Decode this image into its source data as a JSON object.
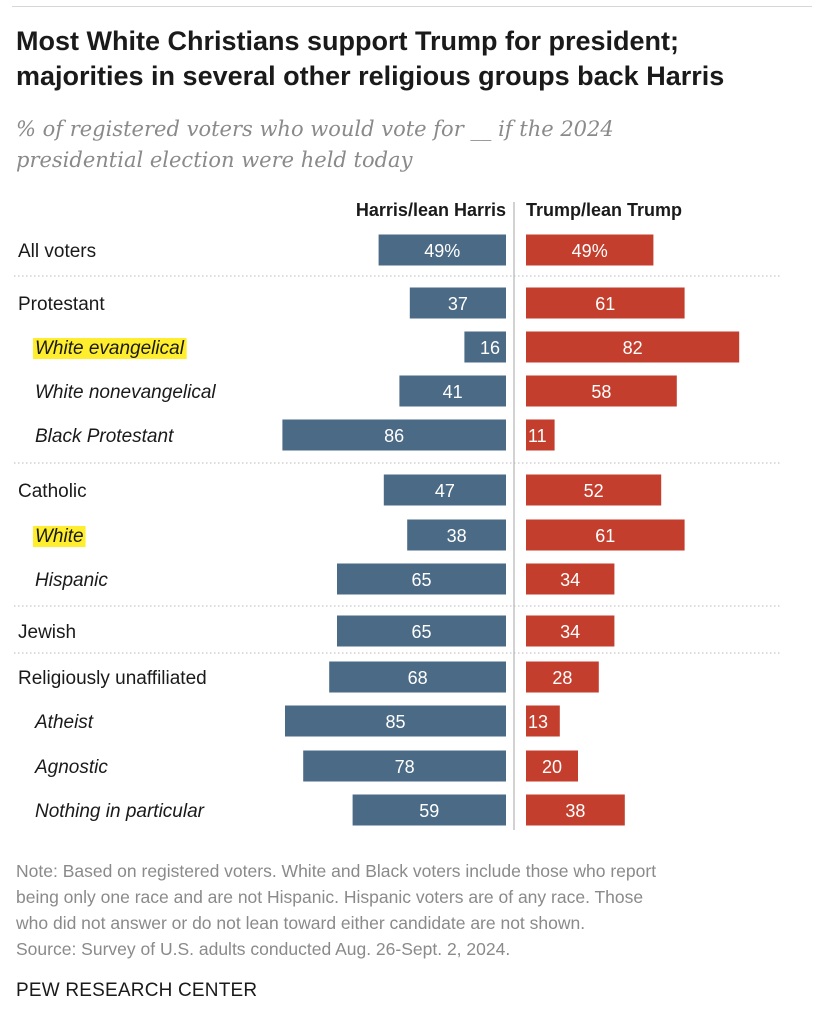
{
  "title_lines": [
    "Most White Christians support Trump for president;",
    "majorities in several other religious groups back Harris"
  ],
  "subtitle_lines": [
    "% of registered voters who would vote for __ if the 2024",
    "presidential election were held today"
  ],
  "chart_data": {
    "type": "bar",
    "orientation": "horizontal-diverging",
    "categories": [
      "All voters",
      "Protestant",
      "White evangelical",
      "White nonevangelical",
      "Black Protestant",
      "Catholic",
      "White",
      "Hispanic",
      "Jewish",
      "Religiously unaffiliated",
      "Atheist",
      "Agnostic",
      "Nothing in particular"
    ],
    "category_style": [
      "plain",
      "plain",
      "italic-highlight",
      "italic",
      "italic",
      "plain",
      "italic-highlight",
      "italic",
      "plain",
      "plain",
      "italic",
      "italic",
      "italic"
    ],
    "groups_separated_after": [
      "All voters",
      "Black Protestant",
      "Hispanic",
      "Jewish"
    ],
    "series": [
      {
        "name": "Harris/lean Harris",
        "color": "#4a6a85",
        "values": [
          49,
          37,
          16,
          41,
          86,
          47,
          38,
          65,
          65,
          68,
          85,
          78,
          59
        ],
        "labels": [
          "49%",
          "37",
          "16",
          "41",
          "86",
          "47",
          "38",
          "65",
          "65",
          "68",
          "85",
          "78",
          "59"
        ]
      },
      {
        "name": "Trump/lean Trump",
        "color": "#c43e2d",
        "values": [
          49,
          61,
          82,
          58,
          11,
          52,
          61,
          34,
          34,
          28,
          13,
          20,
          38
        ],
        "labels": [
          "49%",
          "61",
          "82",
          "58",
          "11",
          "52",
          "61",
          "34",
          "34",
          "28",
          "13",
          "20",
          "38"
        ]
      }
    ],
    "xlim": [
      0,
      100
    ],
    "highlight_color": "#ffee2e",
    "grid": false
  },
  "note_lines": [
    "Note: Based on registered voters. White and Black voters include those who report",
    "being only one race and are not Hispanic. Hispanic voters are of any race. Those",
    "who did not answer or do not lean toward either candidate are not shown.",
    "Source: Survey of U.S. adults conducted Aug. 26-Sept. 2, 2024."
  ],
  "source": "PEW RESEARCH CENTER"
}
